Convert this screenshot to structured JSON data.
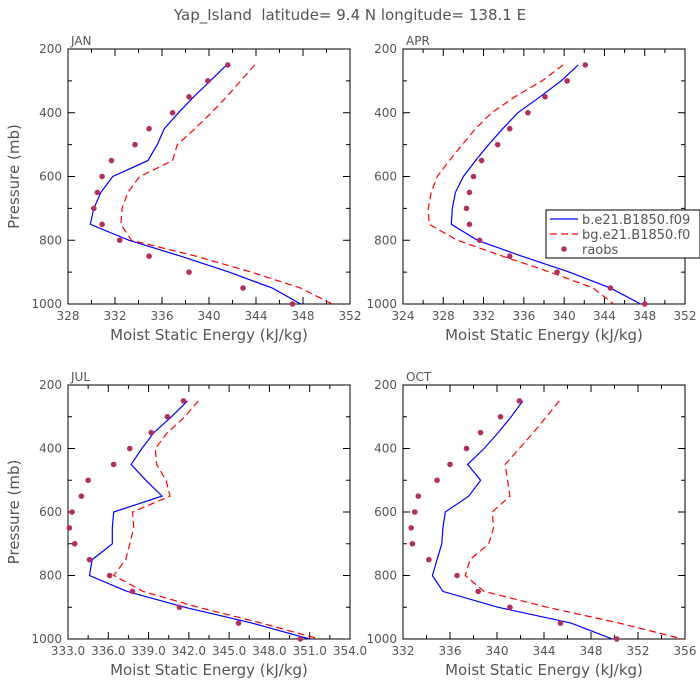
{
  "figure": {
    "title": "Yap_Island  latitude= 9.4 N longitude= 138.1 E",
    "series_names": [
      "b.e21.B1850.f09",
      "bg.e21.B1850.f0",
      "raobs"
    ],
    "colors": {
      "line1": "#0000ff",
      "line2": "#ff0000",
      "marker": "#b03060"
    }
  },
  "chart_data": [
    {
      "type": "line",
      "panel": "JAN",
      "title": "JAN",
      "xlabel": "Moist Static Energy (kJ/kg)",
      "ylabel": "Pressure (mb)",
      "xlim": [
        328,
        352
      ],
      "xticks": [
        "328",
        "332",
        "336",
        "340",
        "344",
        "348",
        "352"
      ],
      "ylim": [
        1000,
        200
      ],
      "yticks": [
        "200",
        "400",
        "600",
        "800",
        "1000"
      ],
      "pressure_levels": [
        250,
        300,
        350,
        400,
        450,
        500,
        550,
        600,
        650,
        700,
        750,
        800,
        850,
        900,
        950,
        1000
      ],
      "series": [
        {
          "name": "b.e21.B1850.f09",
          "style": "solid",
          "values": [
            341.5,
            340.1,
            338.7,
            337.4,
            336.2,
            335.6,
            334.8,
            331.8,
            330.8,
            330.2,
            329.9,
            333.2,
            337.6,
            341.7,
            345.4,
            347.8
          ]
        },
        {
          "name": "bg.e21.B1850.f0",
          "style": "dashed",
          "values": [
            343.9,
            342.7,
            341.5,
            340.2,
            338.8,
            337.3,
            336.9,
            334.1,
            333.1,
            332.6,
            332.5,
            333.4,
            338.9,
            343.6,
            347.8,
            350.5
          ]
        },
        {
          "name": "raobs",
          "style": "marker",
          "values": [
            341.6,
            339.9,
            338.3,
            336.9,
            334.9,
            333.7,
            331.7,
            330.9,
            330.5,
            330.2,
            330.9,
            332.4,
            334.9,
            338.3,
            342.9,
            347.1
          ]
        }
      ]
    },
    {
      "type": "line",
      "panel": "APR",
      "title": "APR",
      "xlabel": "Moist Static Energy (kJ/kg)",
      "ylabel": "",
      "xlim": [
        324,
        352
      ],
      "xticks": [
        "324",
        "328",
        "332",
        "336",
        "340",
        "344",
        "348",
        "352"
      ],
      "ylim": [
        1000,
        200
      ],
      "yticks": [
        "200",
        "400",
        "600",
        "800",
        "1000"
      ],
      "legend": "right",
      "pressure_levels": [
        250,
        300,
        350,
        400,
        450,
        500,
        550,
        600,
        650,
        700,
        750,
        800,
        850,
        900,
        950,
        1000
      ],
      "series": [
        {
          "name": "b.e21.B1850.f09",
          "style": "solid",
          "values": [
            341.4,
            339.7,
            337.6,
            335.4,
            333.9,
            332.5,
            331.2,
            330.0,
            329.2,
            328.9,
            328.8,
            331.4,
            335.8,
            340.5,
            344.6,
            347.6
          ]
        },
        {
          "name": "bg.e21.B1850.f0",
          "style": "dashed",
          "values": [
            339.9,
            337.8,
            335.1,
            332.8,
            331.2,
            329.9,
            328.6,
            327.4,
            326.8,
            326.5,
            326.6,
            329.4,
            333.9,
            338.6,
            342.9,
            344.9
          ]
        },
        {
          "name": "raobs",
          "style": "marker",
          "values": [
            342.1,
            340.3,
            338.1,
            336.4,
            334.6,
            333.4,
            331.8,
            331.0,
            330.6,
            330.3,
            330.6,
            331.6,
            334.6,
            339.3,
            344.6,
            348.0
          ]
        }
      ]
    },
    {
      "type": "line",
      "panel": "JUL",
      "title": "JUL",
      "xlabel": "Moist Static Energy (kJ/kg)",
      "ylabel": "Pressure (mb)",
      "xlim": [
        333.0,
        354.0
      ],
      "xticks": [
        "333.0",
        "336.0",
        "339.0",
        "342.0",
        "345.0",
        "348.0",
        "351.0",
        "354.0"
      ],
      "ylim": [
        1000,
        200
      ],
      "yticks": [
        "200",
        "400",
        "600",
        "800",
        "1000"
      ],
      "pressure_levels": [
        250,
        300,
        350,
        400,
        450,
        500,
        550,
        600,
        650,
        700,
        750,
        800,
        850,
        900,
        950,
        1000
      ],
      "series": [
        {
          "name": "b.e21.B1850.f09",
          "style": "solid",
          "values": [
            341.9,
            340.7,
            339.4,
            338.5,
            337.7,
            338.8,
            340.0,
            336.4,
            336.3,
            336.3,
            334.8,
            334.6,
            337.4,
            341.7,
            346.7,
            351.0
          ]
        },
        {
          "name": "bg.e21.B1850.f0",
          "style": "dashed",
          "values": [
            342.7,
            341.7,
            340.4,
            339.5,
            339.6,
            340.3,
            340.6,
            337.8,
            337.9,
            337.6,
            337.3,
            336.4,
            338.6,
            342.7,
            347.4,
            351.7
          ]
        },
        {
          "name": "raobs",
          "style": "marker",
          "values": [
            341.6,
            340.4,
            339.2,
            337.6,
            336.4,
            334.5,
            334.0,
            333.3,
            333.1,
            333.5,
            334.6,
            336.1,
            337.8,
            341.3,
            345.7,
            350.3
          ]
        }
      ]
    },
    {
      "type": "line",
      "panel": "OCT",
      "title": "OCT",
      "xlabel": "Moist Static Energy (kJ/kg)",
      "ylabel": "",
      "xlim": [
        332,
        356
      ],
      "xticks": [
        "332",
        "336",
        "340",
        "344",
        "348",
        "352",
        "356"
      ],
      "ylim": [
        1000,
        200
      ],
      "yticks": [
        "200",
        "400",
        "600",
        "800",
        "1000"
      ],
      "pressure_levels": [
        250,
        300,
        350,
        400,
        450,
        500,
        550,
        600,
        650,
        700,
        750,
        800,
        850,
        900,
        950,
        1000
      ],
      "series": [
        {
          "name": "b.e21.B1850.f09",
          "style": "solid",
          "values": [
            342.2,
            341.2,
            340.1,
            338.9,
            337.5,
            338.6,
            337.6,
            335.6,
            335.4,
            335.3,
            334.9,
            334.5,
            335.4,
            340.1,
            346.3,
            349.8
          ]
        },
        {
          "name": "bg.e21.B1850.f0",
          "style": "dashed",
          "values": [
            345.3,
            344.2,
            343.1,
            341.9,
            340.7,
            340.9,
            341.1,
            339.6,
            339.7,
            339.3,
            337.7,
            337.3,
            338.9,
            344.3,
            350.4,
            355.8
          ]
        },
        {
          "name": "raobs",
          "style": "marker",
          "values": [
            341.9,
            340.3,
            338.6,
            337.4,
            336.0,
            334.9,
            333.3,
            333.0,
            332.7,
            332.8,
            334.2,
            336.6,
            338.4,
            341.1,
            345.4,
            350.2
          ]
        }
      ]
    }
  ]
}
